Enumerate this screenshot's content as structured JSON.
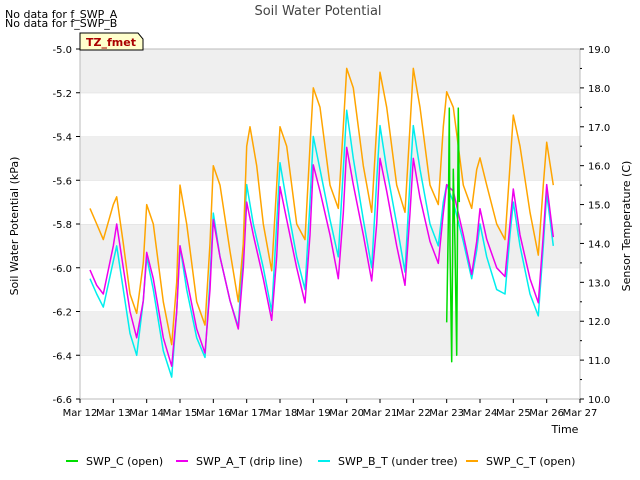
{
  "notes": [
    "No data for f_SWP_A",
    "No data for f_SWP_B"
  ],
  "chart_data": {
    "type": "line",
    "title": "Soil Water Potential",
    "site_label": "TZ_fmet",
    "xlabel": "Time",
    "ylabel_left": "Soil Water Potential (kPa)",
    "ylabel_right": "Sensor Temperature (C)",
    "x_tick_labels": [
      "Mar 12",
      "Mar 13",
      "Mar 14",
      "Mar 15",
      "Mar 16",
      "Mar 17",
      "Mar 18",
      "Mar 19",
      "Mar 20",
      "Mar 21",
      "Mar 22",
      "Mar 23",
      "Mar 24",
      "Mar 25",
      "Mar 26",
      "Mar 27"
    ],
    "xlim_days": [
      12,
      27
    ],
    "ylim_left": [
      -6.6,
      -5.0
    ],
    "yticks_left": [
      "-6.6",
      "-6.4",
      "-6.2",
      "-6.0",
      "-5.8",
      "-5.6",
      "-5.4",
      "-5.2",
      "-5.0"
    ],
    "ylim_right": [
      10.0,
      19.0
    ],
    "yticks_right": [
      "10.0",
      "11.0",
      "12.0",
      "13.0",
      "14.0",
      "15.0",
      "16.0",
      "17.0",
      "18.0",
      "19.0"
    ],
    "grid": "horizontal bands",
    "legend_position": "bottom",
    "series": [
      {
        "name": "SWP_C (open)",
        "color": "#00dd00",
        "axis": "left",
        "points": [
          [
            23.0,
            -6.25
          ],
          [
            23.05,
            -5.8
          ],
          [
            23.08,
            -5.27
          ],
          [
            23.1,
            -5.9
          ],
          [
            23.15,
            -6.43
          ],
          [
            23.2,
            -5.55
          ],
          [
            23.25,
            -5.9
          ],
          [
            23.3,
            -6.4
          ],
          [
            23.35,
            -5.27
          ],
          [
            23.38,
            -5.7
          ]
        ]
      },
      {
        "name": "SWP_A_T (drip line)",
        "color": "#ee00ee",
        "axis": "left",
        "points": [
          [
            12.3,
            -6.01
          ],
          [
            12.5,
            -6.08
          ],
          [
            12.7,
            -6.12
          ],
          [
            13.0,
            -5.9
          ],
          [
            13.1,
            -5.8
          ],
          [
            13.3,
            -6.0
          ],
          [
            13.5,
            -6.2
          ],
          [
            13.7,
            -6.32
          ],
          [
            13.9,
            -6.15
          ],
          [
            14.0,
            -5.93
          ],
          [
            14.2,
            -6.05
          ],
          [
            14.5,
            -6.32
          ],
          [
            14.75,
            -6.45
          ],
          [
            14.9,
            -6.2
          ],
          [
            15.0,
            -5.9
          ],
          [
            15.2,
            -6.05
          ],
          [
            15.5,
            -6.28
          ],
          [
            15.75,
            -6.39
          ],
          [
            15.9,
            -6.1
          ],
          [
            16.0,
            -5.78
          ],
          [
            16.2,
            -5.95
          ],
          [
            16.5,
            -6.15
          ],
          [
            16.75,
            -6.28
          ],
          [
            16.9,
            -6.0
          ],
          [
            17.0,
            -5.7
          ],
          [
            17.2,
            -5.85
          ],
          [
            17.5,
            -6.05
          ],
          [
            17.75,
            -6.24
          ],
          [
            17.9,
            -5.95
          ],
          [
            18.0,
            -5.63
          ],
          [
            18.2,
            -5.78
          ],
          [
            18.5,
            -6.0
          ],
          [
            18.75,
            -6.16
          ],
          [
            18.9,
            -5.85
          ],
          [
            19.0,
            -5.53
          ],
          [
            19.2,
            -5.65
          ],
          [
            19.5,
            -5.85
          ],
          [
            19.75,
            -6.05
          ],
          [
            19.9,
            -5.75
          ],
          [
            20.0,
            -5.45
          ],
          [
            20.2,
            -5.62
          ],
          [
            20.5,
            -5.85
          ],
          [
            20.75,
            -6.06
          ],
          [
            20.9,
            -5.8
          ],
          [
            21.0,
            -5.5
          ],
          [
            21.2,
            -5.65
          ],
          [
            21.5,
            -5.9
          ],
          [
            21.75,
            -6.08
          ],
          [
            21.9,
            -5.75
          ],
          [
            22.0,
            -5.5
          ],
          [
            22.2,
            -5.68
          ],
          [
            22.5,
            -5.88
          ],
          [
            22.75,
            -5.98
          ],
          [
            22.9,
            -5.75
          ],
          [
            23.0,
            -5.62
          ],
          [
            23.2,
            -5.65
          ],
          [
            23.5,
            -5.85
          ],
          [
            23.75,
            -6.03
          ],
          [
            23.9,
            -5.88
          ],
          [
            24.0,
            -5.73
          ],
          [
            24.2,
            -5.87
          ],
          [
            24.5,
            -6.0
          ],
          [
            24.75,
            -6.04
          ],
          [
            24.9,
            -5.8
          ],
          [
            25.0,
            -5.64
          ],
          [
            25.2,
            -5.85
          ],
          [
            25.5,
            -6.05
          ],
          [
            25.75,
            -6.16
          ],
          [
            25.9,
            -5.85
          ],
          [
            26.0,
            -5.62
          ],
          [
            26.2,
            -5.86
          ]
        ]
      },
      {
        "name": "SWP_B_T (under tree)",
        "color": "#00eeee",
        "axis": "left",
        "points": [
          [
            12.3,
            -6.05
          ],
          [
            12.5,
            -6.12
          ],
          [
            12.7,
            -6.18
          ],
          [
            13.0,
            -5.97
          ],
          [
            13.1,
            -5.9
          ],
          [
            13.3,
            -6.1
          ],
          [
            13.5,
            -6.3
          ],
          [
            13.7,
            -6.4
          ],
          [
            13.9,
            -6.15
          ],
          [
            14.0,
            -5.95
          ],
          [
            14.2,
            -6.1
          ],
          [
            14.5,
            -6.38
          ],
          [
            14.75,
            -6.5
          ],
          [
            14.9,
            -6.2
          ],
          [
            15.0,
            -5.9
          ],
          [
            15.2,
            -6.1
          ],
          [
            15.5,
            -6.32
          ],
          [
            15.75,
            -6.41
          ],
          [
            15.9,
            -6.05
          ],
          [
            16.0,
            -5.75
          ],
          [
            16.2,
            -5.95
          ],
          [
            16.5,
            -6.15
          ],
          [
            16.75,
            -6.27
          ],
          [
            16.9,
            -5.9
          ],
          [
            17.0,
            -5.62
          ],
          [
            17.2,
            -5.8
          ],
          [
            17.5,
            -6.0
          ],
          [
            17.75,
            -6.2
          ],
          [
            17.9,
            -5.8
          ],
          [
            18.0,
            -5.52
          ],
          [
            18.2,
            -5.7
          ],
          [
            18.5,
            -5.95
          ],
          [
            18.75,
            -6.1
          ],
          [
            18.9,
            -5.7
          ],
          [
            19.0,
            -5.4
          ],
          [
            19.2,
            -5.55
          ],
          [
            19.5,
            -5.78
          ],
          [
            19.75,
            -5.95
          ],
          [
            19.9,
            -5.55
          ],
          [
            20.0,
            -5.28
          ],
          [
            20.2,
            -5.5
          ],
          [
            20.5,
            -5.78
          ],
          [
            20.75,
            -6.0
          ],
          [
            20.9,
            -5.6
          ],
          [
            21.0,
            -5.35
          ],
          [
            21.2,
            -5.55
          ],
          [
            21.5,
            -5.8
          ],
          [
            21.75,
            -6.02
          ],
          [
            21.9,
            -5.6
          ],
          [
            22.0,
            -5.35
          ],
          [
            22.2,
            -5.55
          ],
          [
            22.5,
            -5.8
          ],
          [
            22.75,
            -5.9
          ],
          [
            22.9,
            -5.7
          ],
          [
            23.0,
            -5.62
          ],
          [
            23.2,
            -5.7
          ],
          [
            23.5,
            -5.88
          ],
          [
            23.75,
            -6.05
          ],
          [
            23.9,
            -5.92
          ],
          [
            24.0,
            -5.8
          ],
          [
            24.2,
            -5.95
          ],
          [
            24.5,
            -6.1
          ],
          [
            24.75,
            -6.12
          ],
          [
            24.9,
            -5.85
          ],
          [
            25.0,
            -5.7
          ],
          [
            25.2,
            -5.9
          ],
          [
            25.5,
            -6.12
          ],
          [
            25.75,
            -6.22
          ],
          [
            25.9,
            -5.9
          ],
          [
            26.0,
            -5.66
          ],
          [
            26.2,
            -5.9
          ]
        ]
      },
      {
        "name": "SWP_C_T (open)",
        "color": "#ffa500",
        "axis": "right",
        "points": [
          [
            12.3,
            14.9
          ],
          [
            12.5,
            14.5
          ],
          [
            12.7,
            14.1
          ],
          [
            13.0,
            15.0
          ],
          [
            13.1,
            15.2
          ],
          [
            13.3,
            14.0
          ],
          [
            13.5,
            12.7
          ],
          [
            13.7,
            12.2
          ],
          [
            13.9,
            13.5
          ],
          [
            14.0,
            15.0
          ],
          [
            14.2,
            14.5
          ],
          [
            14.5,
            12.5
          ],
          [
            14.75,
            11.4
          ],
          [
            14.9,
            13.0
          ],
          [
            15.0,
            15.5
          ],
          [
            15.2,
            14.5
          ],
          [
            15.5,
            12.5
          ],
          [
            15.75,
            11.9
          ],
          [
            15.9,
            14.0
          ],
          [
            16.0,
            16.0
          ],
          [
            16.2,
            15.5
          ],
          [
            16.5,
            13.8
          ],
          [
            16.75,
            12.5
          ],
          [
            16.9,
            14.0
          ],
          [
            17.0,
            16.5
          ],
          [
            17.1,
            17.0
          ],
          [
            17.3,
            16.0
          ],
          [
            17.5,
            14.5
          ],
          [
            17.75,
            13.3
          ],
          [
            17.9,
            15.5
          ],
          [
            18.0,
            17.0
          ],
          [
            18.2,
            16.5
          ],
          [
            18.5,
            14.5
          ],
          [
            18.75,
            14.1
          ],
          [
            18.9,
            16.5
          ],
          [
            19.0,
            18.0
          ],
          [
            19.2,
            17.5
          ],
          [
            19.5,
            15.5
          ],
          [
            19.75,
            14.9
          ],
          [
            19.9,
            17.0
          ],
          [
            20.0,
            18.5
          ],
          [
            20.2,
            18.0
          ],
          [
            20.5,
            16.0
          ],
          [
            20.75,
            14.8
          ],
          [
            20.9,
            17.0
          ],
          [
            21.0,
            18.4
          ],
          [
            21.2,
            17.5
          ],
          [
            21.5,
            15.5
          ],
          [
            21.75,
            14.8
          ],
          [
            21.9,
            17.0
          ],
          [
            22.0,
            18.5
          ],
          [
            22.2,
            17.5
          ],
          [
            22.5,
            15.5
          ],
          [
            22.75,
            15.0
          ],
          [
            22.9,
            17.0
          ],
          [
            23.0,
            17.9
          ],
          [
            23.2,
            17.5
          ],
          [
            23.5,
            15.5
          ],
          [
            23.75,
            14.9
          ],
          [
            23.9,
            15.9
          ],
          [
            24.0,
            16.2
          ],
          [
            24.2,
            15.5
          ],
          [
            24.5,
            14.5
          ],
          [
            24.75,
            14.1
          ],
          [
            24.9,
            16.0
          ],
          [
            25.0,
            17.3
          ],
          [
            25.2,
            16.5
          ],
          [
            25.5,
            14.8
          ],
          [
            25.75,
            13.7
          ],
          [
            25.9,
            15.5
          ],
          [
            26.0,
            16.6
          ],
          [
            26.2,
            15.5
          ]
        ]
      }
    ]
  }
}
